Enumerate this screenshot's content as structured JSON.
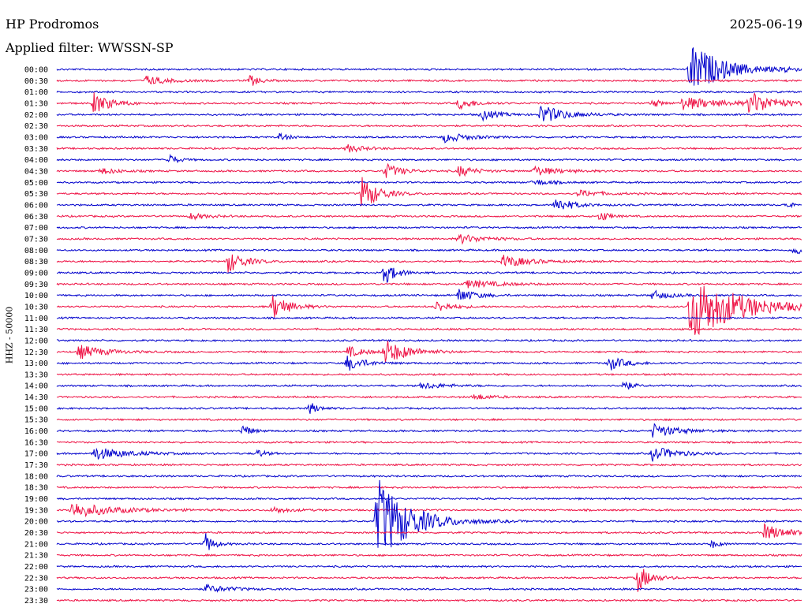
{
  "header": {
    "station": "HP Prodromos",
    "date": "2025-06-19",
    "filter": "Applied filter: WWSSN-SP"
  },
  "chart_data": {
    "type": "helicorder",
    "ylabel": "HHZ - 50000",
    "row_labels": [
      "00:00",
      "00:30",
      "01:00",
      "01:30",
      "02:00",
      "02:30",
      "03:00",
      "03:30",
      "04:00",
      "04:30",
      "05:00",
      "05:30",
      "06:00",
      "06:30",
      "07:00",
      "07:30",
      "08:00",
      "08:30",
      "09:00",
      "09:30",
      "10:00",
      "10:30",
      "11:00",
      "11:30",
      "12:00",
      "12:30",
      "13:00",
      "13:30",
      "14:00",
      "14:30",
      "15:00",
      "15:30",
      "16:00",
      "16:30",
      "17:00",
      "17:30",
      "18:00",
      "18:30",
      "19:00",
      "19:30",
      "20:00",
      "20:30",
      "21:00",
      "21:30",
      "22:00",
      "22:30",
      "23:00",
      "23:30"
    ],
    "colors": [
      "#0000cc",
      "#ee1144"
    ],
    "events": [
      {
        "row": 0,
        "t": 0.85,
        "amp": 34,
        "dur": 0.04
      },
      {
        "row": 0,
        "t": 0.98,
        "amp": 5,
        "dur": 0.005
      },
      {
        "row": 1,
        "t": 0.12,
        "amp": 6,
        "dur": 0.025
      },
      {
        "row": 1,
        "t": 0.26,
        "amp": 8,
        "dur": 0.01
      },
      {
        "row": 3,
        "t": 0.05,
        "amp": 14,
        "dur": 0.02
      },
      {
        "row": 3,
        "t": 0.54,
        "amp": 7,
        "dur": 0.02
      },
      {
        "row": 3,
        "t": 0.8,
        "amp": 6,
        "dur": 0.01
      },
      {
        "row": 3,
        "t": 0.84,
        "amp": 8,
        "dur": 0.05
      },
      {
        "row": 3,
        "t": 0.93,
        "amp": 14,
        "dur": 0.03
      },
      {
        "row": 4,
        "t": 0.57,
        "amp": 7,
        "dur": 0.02
      },
      {
        "row": 4,
        "t": 0.65,
        "amp": 12,
        "dur": 0.03
      },
      {
        "row": 6,
        "t": 0.3,
        "amp": 6,
        "dur": 0.01
      },
      {
        "row": 6,
        "t": 0.52,
        "amp": 6,
        "dur": 0.03
      },
      {
        "row": 7,
        "t": 0.39,
        "amp": 5,
        "dur": 0.02
      },
      {
        "row": 8,
        "t": 0.15,
        "amp": 8,
        "dur": 0.01
      },
      {
        "row": 9,
        "t": 0.06,
        "amp": 4,
        "dur": 0.02
      },
      {
        "row": 9,
        "t": 0.44,
        "amp": 10,
        "dur": 0.02
      },
      {
        "row": 9,
        "t": 0.54,
        "amp": 7,
        "dur": 0.02
      },
      {
        "row": 9,
        "t": 0.64,
        "amp": 6,
        "dur": 0.03
      },
      {
        "row": 10,
        "t": 0.64,
        "amp": 4,
        "dur": 0.02
      },
      {
        "row": 11,
        "t": 0.41,
        "amp": 22,
        "dur": 0.02
      },
      {
        "row": 11,
        "t": 0.7,
        "amp": 4,
        "dur": 0.03
      },
      {
        "row": 12,
        "t": 0.67,
        "amp": 10,
        "dur": 0.02
      },
      {
        "row": 12,
        "t": 0.98,
        "amp": 6,
        "dur": 0.005
      },
      {
        "row": 13,
        "t": 0.18,
        "amp": 4,
        "dur": 0.02
      },
      {
        "row": 13,
        "t": 0.73,
        "amp": 8,
        "dur": 0.01
      },
      {
        "row": 15,
        "t": 0.54,
        "amp": 6,
        "dur": 0.03
      },
      {
        "row": 16,
        "t": 0.99,
        "amp": 8,
        "dur": 0.01
      },
      {
        "row": 17,
        "t": 0.23,
        "amp": 14,
        "dur": 0.02
      },
      {
        "row": 17,
        "t": 0.6,
        "amp": 8,
        "dur": 0.03
      },
      {
        "row": 18,
        "t": 0.44,
        "amp": 14,
        "dur": 0.015
      },
      {
        "row": 19,
        "t": 0.55,
        "amp": 5,
        "dur": 0.04
      },
      {
        "row": 20,
        "t": 0.54,
        "amp": 9,
        "dur": 0.02
      },
      {
        "row": 20,
        "t": 0.8,
        "amp": 6,
        "dur": 0.02
      },
      {
        "row": 21,
        "t": 0.29,
        "amp": 16,
        "dur": 0.02
      },
      {
        "row": 21,
        "t": 0.51,
        "amp": 7,
        "dur": 0.02
      },
      {
        "row": 21,
        "t": 0.85,
        "amp": 44,
        "dur": 0.06
      },
      {
        "row": 25,
        "t": 0.03,
        "amp": 9,
        "dur": 0.03
      },
      {
        "row": 25,
        "t": 0.39,
        "amp": 7,
        "dur": 0.02
      },
      {
        "row": 25,
        "t": 0.44,
        "amp": 15,
        "dur": 0.03
      },
      {
        "row": 26,
        "t": 0.39,
        "amp": 10,
        "dur": 0.02
      },
      {
        "row": 26,
        "t": 0.74,
        "amp": 10,
        "dur": 0.02
      },
      {
        "row": 28,
        "t": 0.49,
        "amp": 4,
        "dur": 0.03
      },
      {
        "row": 28,
        "t": 0.76,
        "amp": 8,
        "dur": 0.01
      },
      {
        "row": 29,
        "t": 0.56,
        "amp": 4,
        "dur": 0.02
      },
      {
        "row": 30,
        "t": 0.34,
        "amp": 8,
        "dur": 0.01
      },
      {
        "row": 32,
        "t": 0.25,
        "amp": 8,
        "dur": 0.01
      },
      {
        "row": 32,
        "t": 0.8,
        "amp": 9,
        "dur": 0.03
      },
      {
        "row": 34,
        "t": 0.05,
        "amp": 8,
        "dur": 0.04
      },
      {
        "row": 34,
        "t": 0.27,
        "amp": 5,
        "dur": 0.01
      },
      {
        "row": 34,
        "t": 0.8,
        "amp": 9,
        "dur": 0.03
      },
      {
        "row": 39,
        "t": 0.02,
        "amp": 10,
        "dur": 0.05
      },
      {
        "row": 39,
        "t": 0.29,
        "amp": 4,
        "dur": 0.02
      },
      {
        "row": 40,
        "t": 0.43,
        "amp": 56,
        "dur": 0.04
      },
      {
        "row": 41,
        "t": 0.95,
        "amp": 10,
        "dur": 0.03
      },
      {
        "row": 42,
        "t": 0.2,
        "amp": 13,
        "dur": 0.01
      },
      {
        "row": 42,
        "t": 0.88,
        "amp": 5,
        "dur": 0.01
      },
      {
        "row": 45,
        "t": 0.78,
        "amp": 18,
        "dur": 0.015
      },
      {
        "row": 46,
        "t": 0.2,
        "amp": 5,
        "dur": 0.03
      }
    ]
  }
}
